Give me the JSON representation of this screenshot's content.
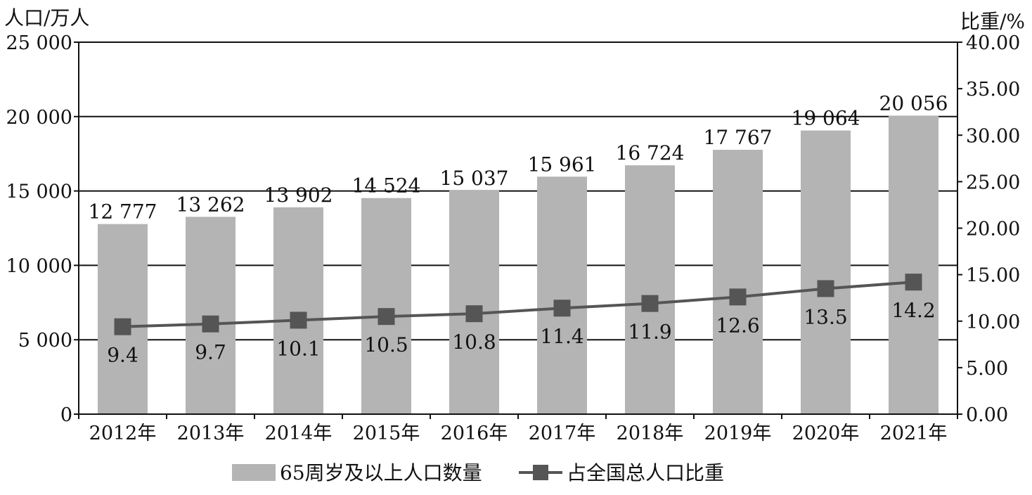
{
  "chart_data": {
    "type": "bar",
    "categories": [
      "2012年",
      "2013年",
      "2014年",
      "2015年",
      "2016年",
      "2017年",
      "2018年",
      "2019年",
      "2020年",
      "2021年"
    ],
    "series": [
      {
        "name": "65周岁及以上人口数量",
        "kind": "bar",
        "axis": "left",
        "values": [
          12777,
          13262,
          13902,
          14524,
          15037,
          15961,
          16724,
          17767,
          19064,
          20056
        ],
        "labels": [
          "12 777",
          "13 262",
          "13 902",
          "14 524",
          "15 037",
          "15 961",
          "16 724",
          "17 767",
          "19 064",
          "20 056"
        ],
        "color": "#b4b4b4"
      },
      {
        "name": "占全国总人口比重",
        "kind": "line",
        "axis": "right",
        "marker": "square",
        "values": [
          9.4,
          9.7,
          10.1,
          10.5,
          10.8,
          11.4,
          11.9,
          12.6,
          13.5,
          14.2
        ],
        "labels": [
          "9.4",
          "9.7",
          "10.1",
          "10.5",
          "10.8",
          "11.4",
          "11.9",
          "12.6",
          "13.5",
          "14.2"
        ],
        "color": "#555555"
      }
    ],
    "ylabel": "人口/万人",
    "y2label": "比重/%",
    "ylim": [
      0,
      25000
    ],
    "y2lim": [
      0,
      40
    ],
    "yticks": [
      "0",
      "5 000",
      "10 000",
      "15 000",
      "20 000",
      "25 000"
    ],
    "y2ticks": [
      "0.00",
      "5.00",
      "10.00",
      "15.00",
      "20.00",
      "25.00",
      "30.00",
      "35.00",
      "40.00"
    ],
    "grid": true,
    "legend": "bottom"
  }
}
